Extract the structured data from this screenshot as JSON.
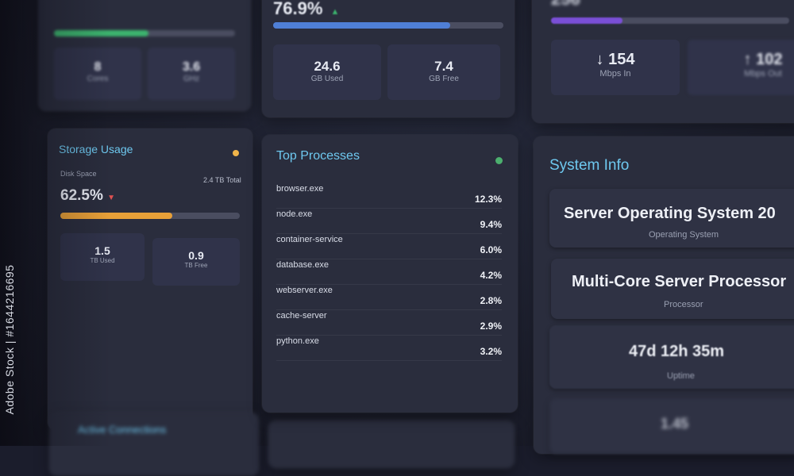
{
  "cpu": {
    "stats": [
      {
        "value": "8",
        "unit": "Cores"
      },
      {
        "value": "3.6",
        "unit": "GHz"
      }
    ],
    "bar_color": "#3cb46e",
    "usage_fraction": 0.52
  },
  "memory": {
    "percent": "76.9%",
    "trend": "▲",
    "trend_color": "#3cb46e",
    "bar_color": "#4f7fd6",
    "usage_fraction": 0.769,
    "stats": [
      {
        "value": "24.6",
        "unit": "GB Used"
      },
      {
        "value": "7.4",
        "unit": "GB Free"
      }
    ]
  },
  "network": {
    "top_value": "256",
    "bar_color": "#7a4fd6",
    "stats": [
      {
        "value": "↓ 154",
        "unit": "Mbps In"
      },
      {
        "value": "↑ 102",
        "unit": "Mbps Out"
      }
    ]
  },
  "storage": {
    "title": "Storage Usage",
    "status_color": "#f0b44a",
    "label": "Disk Space",
    "total": "2.4 TB Total",
    "percent": "62.5%",
    "trend": "▼",
    "trend_color": "#e05252",
    "bar_color": "#e8a038",
    "usage_fraction": 0.625,
    "stats": [
      {
        "value": "1.5",
        "unit": "TB Used"
      },
      {
        "value": "0.9",
        "unit": "TB Free"
      }
    ]
  },
  "processes": {
    "title": "Top Processes",
    "status_color": "#4caf6e",
    "items": [
      {
        "name": "browser.exe",
        "value": "12.3%"
      },
      {
        "name": "node.exe",
        "value": "9.4%"
      },
      {
        "name": "container-service",
        "value": "6.0%"
      },
      {
        "name": "database.exe",
        "value": "4.2%"
      },
      {
        "name": "webserver.exe",
        "value": "2.8%"
      },
      {
        "name": "cache-server",
        "value": "2.9%"
      },
      {
        "name": "python.exe",
        "value": "3.2%"
      }
    ]
  },
  "system_info": {
    "title": "System Info",
    "items": [
      {
        "value": "Server Operating System 20",
        "label": "Operating System"
      },
      {
        "value": "Multi-Core Server Processor",
        "label": "Processor"
      },
      {
        "value": "47d 12h 35m",
        "label": "Uptime"
      },
      {
        "value": "1.45",
        "label": ""
      }
    ]
  },
  "connections": {
    "title": "Active Connections"
  },
  "watermark": "Adobe Stock | #1644216695"
}
